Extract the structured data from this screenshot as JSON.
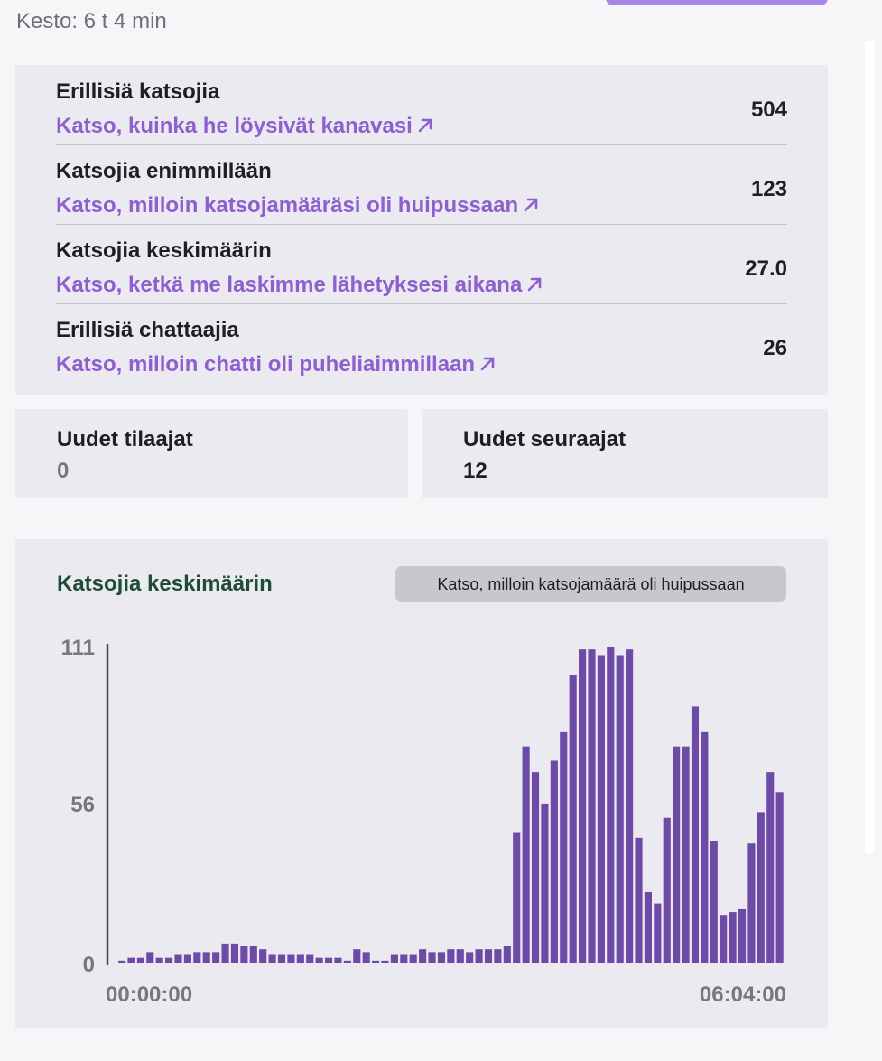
{
  "header": {
    "duration": "Kesto: 6 t 4 min"
  },
  "stats": [
    {
      "title": "Erillisiä katsojia",
      "link": "Katso, kuinka he löysivät kanavasi",
      "value": "504"
    },
    {
      "title": "Katsojia enimmillään",
      "link": "Katso, milloin katsojamääräsi oli huipussaan",
      "value": "123"
    },
    {
      "title": "Katsojia keskimäärin",
      "link": "Katso, ketkä me laskimme lähetyksesi aikana",
      "value": "27.0"
    },
    {
      "title": "Erillisiä chattaajia",
      "link": "Katso, milloin chatti oli puheliaimmillaan",
      "value": "26"
    }
  ],
  "cards": {
    "subscribers": {
      "label": "Uudet tilaajat",
      "value": "0"
    },
    "followers": {
      "label": "Uudet seuraajat",
      "value": "12"
    }
  },
  "chart": {
    "title": "Katsojia keskimäärin",
    "pill": "Katso, milloin katsojamäärä oli huipussaan"
  },
  "colors": {
    "accent": "#8d5fcf",
    "bar": "#6c4aa6",
    "chart_title": "#1e4d35",
    "zero_value": "#77777f"
  },
  "chart_data": {
    "type": "bar",
    "x_labels": [
      "00:00:00",
      "06:04:00"
    ],
    "y_ticks": [
      0,
      56,
      111
    ],
    "ylim": [
      0,
      111
    ],
    "values": [
      1,
      2,
      2,
      4,
      2,
      2,
      3,
      3,
      4,
      4,
      4,
      7,
      7,
      6,
      6,
      5,
      3,
      3,
      3,
      3,
      3,
      2,
      2,
      2,
      1,
      5,
      4,
      1,
      1,
      3,
      3,
      3,
      5,
      4,
      4,
      5,
      5,
      4,
      5,
      5,
      5,
      6,
      46,
      76,
      67,
      56,
      71,
      81,
      101,
      110,
      110,
      108,
      111,
      108,
      110,
      44,
      25,
      21,
      51,
      76,
      76,
      90,
      81,
      43,
      17,
      18,
      19,
      42,
      53,
      67,
      60
    ],
    "grid": false,
    "legend": "none"
  }
}
